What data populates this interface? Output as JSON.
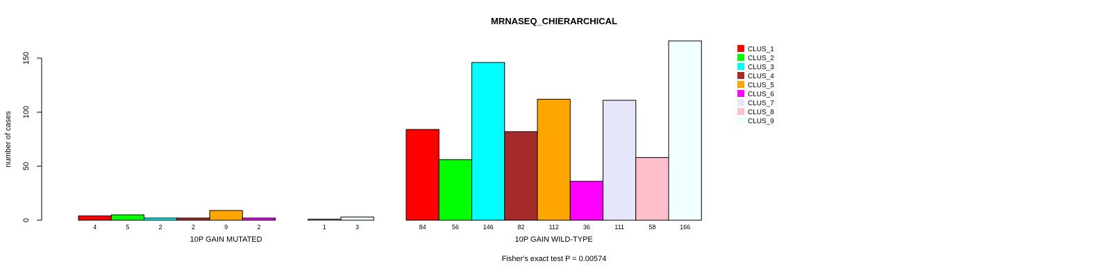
{
  "chart_data": {
    "type": "bar",
    "title": "MRNASEQ_CHIERARCHICAL",
    "ylabel": "number of cases",
    "ylim": [
      0,
      170
    ],
    "yticks": [
      0,
      50,
      100,
      150
    ],
    "footnote": "Fisher's exact test P = 0.00574",
    "legend_position": "top-right",
    "series_names": [
      "CLUS_1",
      "CLUS_2",
      "CLUS_3",
      "CLUS_4",
      "CLUS_5",
      "CLUS_6",
      "CLUS_7",
      "CLUS_8",
      "CLUS_9"
    ],
    "colors": [
      "#FF0000",
      "#00FF00",
      "#00FFFF",
      "#A52A2A",
      "#FFA500",
      "#FF00FF",
      "#E6E6FA",
      "#FFC0CB",
      "#F0FFFF"
    ],
    "groups": [
      {
        "label": "10P GAIN MUTATED",
        "values": [
          4,
          5,
          2,
          2,
          9,
          2,
          0,
          1,
          3
        ],
        "value_labels": [
          "4",
          "5",
          "2",
          "2",
          "9",
          "2",
          "",
          "1",
          "3"
        ]
      },
      {
        "label": "10P GAIN WILD-TYPE",
        "values": [
          84,
          56,
          146,
          82,
          112,
          36,
          111,
          58,
          166
        ],
        "value_labels": [
          "84",
          "56",
          "146",
          "82",
          "112",
          "36",
          "111",
          "58",
          "166"
        ]
      }
    ]
  }
}
